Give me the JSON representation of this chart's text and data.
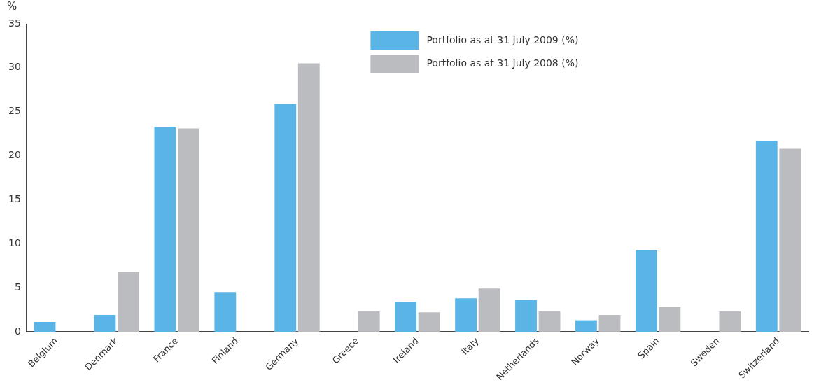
{
  "chart_data": {
    "type": "bar",
    "ylabel": "%",
    "categories": [
      "Belgium",
      "Denmark",
      "France",
      "Finland",
      "Germany",
      "Greece",
      "Ireland",
      "Italy",
      "Netherlands",
      "Norway",
      "Spain",
      "Sweden",
      "Switzerland"
    ],
    "series": [
      {
        "name": "Portfolio as at 31 July 2009 (%)",
        "color": "#5ab5e6",
        "values": [
          1.1,
          1.9,
          23.3,
          4.5,
          25.9,
          0,
          3.4,
          3.8,
          3.6,
          1.3,
          9.3,
          0,
          21.7
        ]
      },
      {
        "name": "Portfolio as at 31 July 2008 (%)",
        "color": "#bbbcc0",
        "values": [
          0,
          6.8,
          23.1,
          0,
          30.5,
          2.3,
          2.2,
          4.9,
          2.3,
          1.9,
          2.8,
          2.3,
          20.8
        ]
      }
    ],
    "ylim": [
      0,
      35
    ],
    "yticks": [
      0,
      5,
      10,
      15,
      20,
      25,
      30,
      35
    ],
    "grid": false,
    "legend": "top"
  }
}
